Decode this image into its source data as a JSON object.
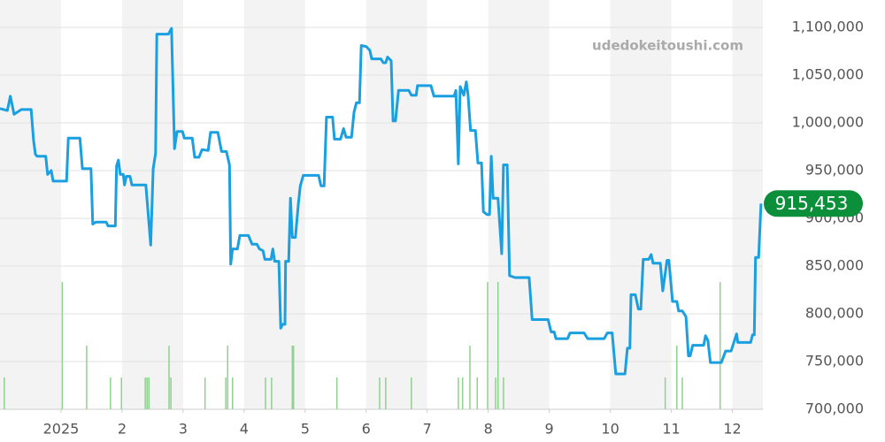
{
  "chart_data": {
    "type": "line",
    "watermark": "udedokeitoushi.com",
    "color": "#1a9fe0",
    "band_color": "#f3f3f3",
    "grid": true,
    "xlim": [
      0,
      12.5
    ],
    "xticks": [
      {
        "value": 1,
        "label": "2025"
      },
      2,
      3,
      4,
      5,
      6,
      7,
      8,
      9,
      10,
      11,
      12
    ],
    "ylim": [
      700000,
      1100000
    ],
    "yticks": [
      {
        "value": 700000,
        "label": "700,000"
      },
      {
        "value": 750000,
        "label": "750,000"
      },
      {
        "value": 800000,
        "label": "800,000"
      },
      {
        "value": 850000,
        "label": "850,000"
      },
      {
        "value": 900000,
        "label": "900,000"
      },
      {
        "value": 950000,
        "label": "950,000"
      },
      {
        "value": 1000000,
        "label": "1,000,000"
      },
      {
        "value": 1050000,
        "label": "1,050,000"
      },
      {
        "value": 1100000,
        "label": "1,100,000"
      }
    ],
    "x": [
      0.0,
      0.12,
      0.17,
      0.23,
      0.35,
      0.51,
      0.55,
      0.58,
      0.61,
      0.75,
      0.78,
      0.84,
      0.87,
      1.09,
      1.12,
      1.31,
      1.35,
      1.49,
      1.52,
      1.57,
      1.74,
      1.77,
      1.89,
      1.91,
      1.94,
      1.97,
      2.02,
      2.04,
      2.07,
      2.13,
      2.16,
      2.39,
      2.47,
      2.51,
      2.55,
      2.57,
      2.76,
      2.81,
      2.86,
      2.9,
      2.99,
      3.02,
      3.15,
      3.19,
      3.26,
      3.31,
      3.41,
      3.45,
      3.57,
      3.63,
      3.71,
      3.76,
      3.78,
      3.81,
      3.89,
      3.93,
      4.07,
      4.13,
      4.21,
      4.25,
      4.31,
      4.34,
      4.44,
      4.47,
      4.5,
      4.57,
      4.6,
      4.63,
      4.67,
      4.68,
      4.73,
      4.76,
      4.79,
      4.84,
      4.89,
      4.92,
      4.97,
      5.22,
      5.26,
      5.31,
      5.35,
      5.45,
      5.48,
      5.58,
      5.63,
      5.67,
      5.76,
      5.8,
      5.84,
      5.89,
      5.92,
      6.0,
      6.06,
      6.09,
      6.24,
      6.28,
      6.32,
      6.35,
      6.41,
      6.44,
      6.48,
      6.53,
      6.7,
      6.74,
      6.82,
      6.84,
      7.06,
      7.11,
      7.44,
      7.47,
      7.51,
      7.54,
      7.6,
      7.64,
      7.67,
      7.71,
      7.79,
      7.83,
      7.89,
      7.92,
      7.98,
      8.02,
      8.05,
      8.08,
      8.16,
      8.22,
      8.25,
      8.31,
      8.35,
      8.44,
      8.67,
      8.72,
      8.98,
      9.03,
      9.08,
      9.11,
      9.3,
      9.34,
      9.57,
      9.63,
      9.9,
      9.95,
      10.03,
      10.09,
      10.24,
      10.28,
      10.32,
      10.34,
      10.41,
      10.46,
      10.5,
      10.54,
      10.63,
      10.67,
      10.7,
      10.82,
      10.86,
      10.93,
      10.96,
      11.02,
      11.09,
      11.12,
      11.18,
      11.24,
      11.28,
      11.31,
      11.35,
      11.53,
      11.56,
      11.6,
      11.64,
      11.82,
      11.89,
      11.98,
      12.07,
      12.09,
      12.3,
      12.33,
      12.36,
      12.38,
      12.43,
      12.47
    ],
    "values": [
      1015000,
      1013000,
      1028000,
      1009000,
      1014000,
      1014000,
      982000,
      967000,
      965000,
      965000,
      946000,
      950000,
      939000,
      939000,
      984000,
      984000,
      952000,
      952000,
      894000,
      896000,
      896000,
      892000,
      892000,
      955000,
      961000,
      946000,
      946000,
      935000,
      944000,
      944000,
      935000,
      935000,
      872000,
      952000,
      968000,
      1093000,
      1093000,
      1099000,
      973000,
      991000,
      991000,
      984000,
      984000,
      964000,
      964000,
      972000,
      971000,
      990000,
      990000,
      970000,
      970000,
      956000,
      852000,
      868000,
      868000,
      882000,
      882000,
      873000,
      873000,
      868000,
      866000,
      857000,
      857000,
      868000,
      855000,
      855000,
      785000,
      789000,
      789000,
      855000,
      855000,
      921000,
      880000,
      880000,
      916000,
      934000,
      945000,
      945000,
      934000,
      934000,
      1006000,
      1006000,
      983000,
      983000,
      994000,
      985000,
      985000,
      1011000,
      1021000,
      1021000,
      1081000,
      1080000,
      1076000,
      1067000,
      1067000,
      1063000,
      1063000,
      1069000,
      1065000,
      1002000,
      1002000,
      1034000,
      1034000,
      1029000,
      1029000,
      1039000,
      1039000,
      1028000,
      1028000,
      1034000,
      957000,
      1038000,
      1029000,
      1043000,
      1029000,
      992000,
      992000,
      958000,
      958000,
      907000,
      904000,
      904000,
      965000,
      921000,
      921000,
      863000,
      956000,
      956000,
      840000,
      838000,
      838000,
      794000,
      794000,
      781000,
      781000,
      774000,
      774000,
      780000,
      780000,
      774000,
      774000,
      780000,
      780000,
      737000,
      737000,
      764000,
      764000,
      820000,
      820000,
      805000,
      805000,
      857000,
      857000,
      862000,
      853000,
      853000,
      824000,
      856000,
      856000,
      813000,
      813000,
      803000,
      803000,
      797000,
      756000,
      756000,
      767000,
      767000,
      777000,
      772000,
      749000,
      749000,
      761000,
      761000,
      779000,
      770000,
      770000,
      778000,
      778000,
      859000,
      859000,
      915453
    ],
    "current": {
      "value": 915453,
      "label": "915,453"
    },
    "current_color": "#0b8f3a",
    "volume_color": "#8fd18f",
    "volume_ylim": [
      0,
      12
    ],
    "volume_x": [
      0.07,
      1.02,
      1.42,
      1.81,
      1.99,
      2.38,
      2.41,
      2.44,
      2.77,
      2.8,
      3.36,
      3.7,
      3.73,
      3.81,
      4.35,
      4.45,
      4.79,
      4.81,
      5.52,
      6.22,
      6.32,
      6.74,
      7.51,
      7.58,
      7.7,
      7.82,
      7.99,
      8.12,
      8.16,
      8.25,
      10.9,
      11.09,
      11.18,
      11.8
    ],
    "volume_values": [
      1,
      4,
      2,
      1,
      1,
      1,
      1,
      1,
      2,
      1,
      1,
      1,
      2,
      1,
      1,
      1,
      2,
      2,
      1,
      1,
      1,
      1,
      1,
      1,
      2,
      1,
      4,
      1,
      4,
      1,
      1,
      2,
      1,
      4
    ]
  }
}
